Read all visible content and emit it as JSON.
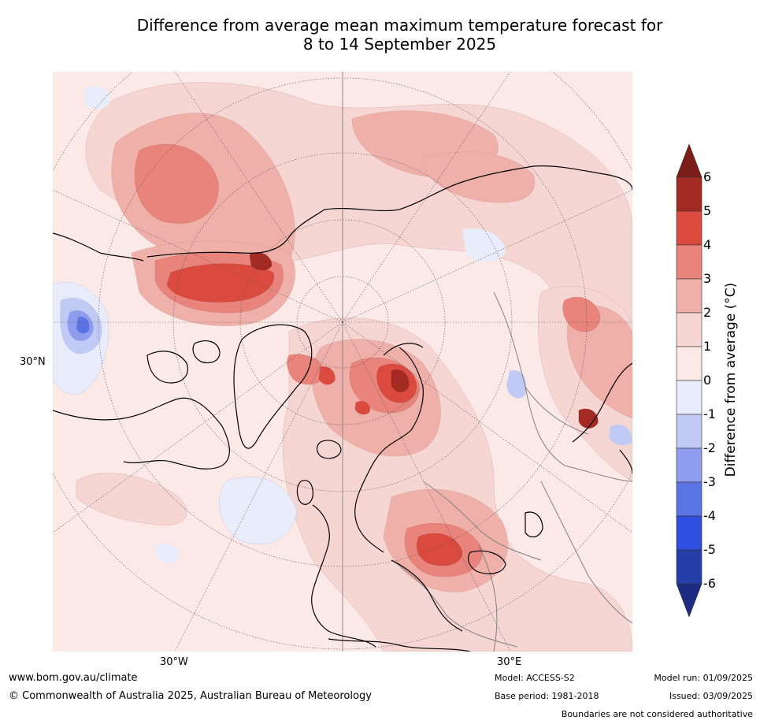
{
  "title": {
    "line1": "Difference from average mean maximum temperature forecast for",
    "line2": "8 to 14 September 2025"
  },
  "map": {
    "projection": "north-polar-stereographic",
    "lat_label": "30°N",
    "lon_labels": [
      "30°W",
      "30°E"
    ],
    "background_color": "#fbe9e7",
    "coastline_color": "#000000",
    "border_color": "#808080"
  },
  "colorbar": {
    "title": "Difference from average (°C)",
    "ticks": [
      "6",
      "5",
      "4",
      "3",
      "2",
      "1",
      "0",
      "-1",
      "-2",
      "-3",
      "-4",
      "-5",
      "-6"
    ],
    "colors": [
      "#7b1c17",
      "#a42a24",
      "#db4a3f",
      "#e8847b",
      "#f0b0aa",
      "#f6d6d2",
      "#fbe9e7",
      "#e8ecfb",
      "#c1caf4",
      "#8e9ded",
      "#5a74e4",
      "#2d4ee0",
      "#263ea8",
      "#1d2c82"
    ]
  },
  "footer": {
    "url": "www.bom.gov.au/climate",
    "copyright": "© Commonwealth of Australia 2025, Australian Bureau of Meteorology",
    "model": "Model: ACCESS-S2",
    "base_period": "Base period: 1981-2018",
    "model_run": "Model run: 01/09/2025",
    "issued": "Issued: 03/09/2025",
    "disclaimer": "Boundaries are not considered authoritative"
  }
}
